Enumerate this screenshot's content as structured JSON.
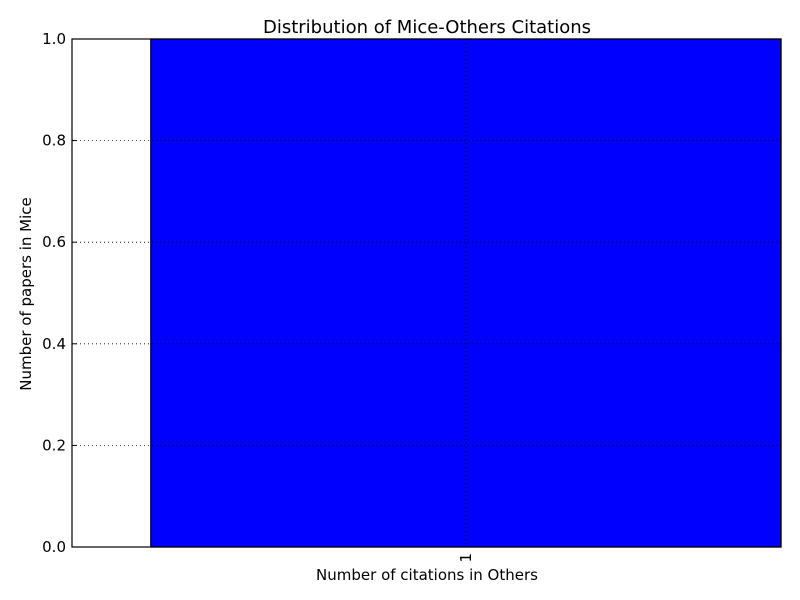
{
  "chart_data": {
    "type": "bar",
    "title": "Distribution of Mice-Others Citations",
    "xlabel": "Number of citations in Others",
    "ylabel": "Number of papers in Mice",
    "categories": [
      "1"
    ],
    "values": [
      1.0
    ],
    "ylim": [
      0.0,
      1.0
    ],
    "yticks": [
      "0.0",
      "0.2",
      "0.4",
      "0.6",
      "0.8",
      "1.0"
    ],
    "xtick_rotation": "vertical",
    "grid": "dotted",
    "bar_color": "#0000ff",
    "edge_color": "#000000"
  }
}
